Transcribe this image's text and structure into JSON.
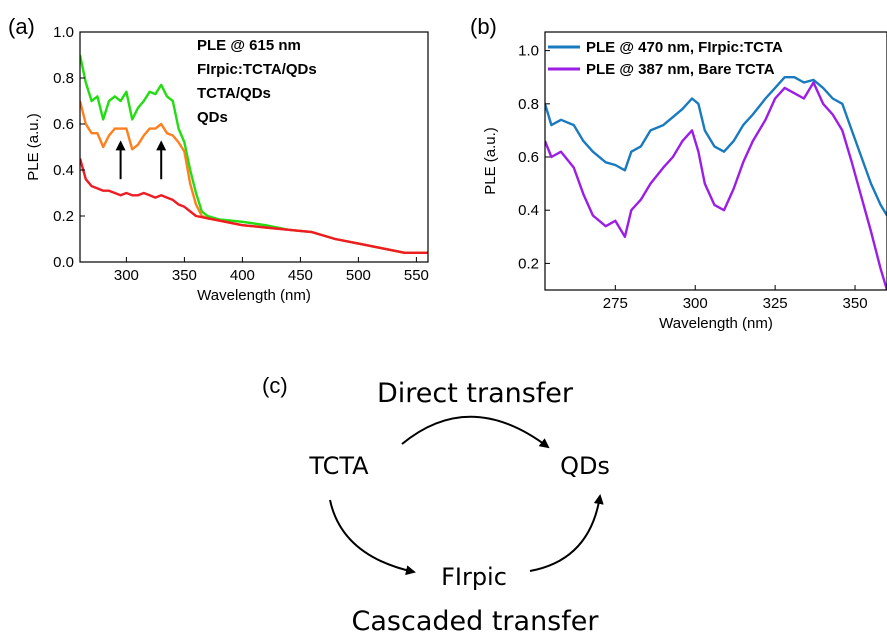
{
  "panel_labels": {
    "a": "(a)",
    "b": "(b)",
    "c": "(c)"
  },
  "chart_data": [
    {
      "type": "line",
      "xlabel": "Wavelength (nm)",
      "ylabel": "PLE (a.u.)",
      "xlim": [
        260,
        560
      ],
      "ylim": [
        0.0,
        1.0
      ],
      "xticks": [
        300,
        350,
        400,
        450,
        500,
        550
      ],
      "yticks": [
        0.0,
        0.2,
        0.4,
        0.6,
        0.8,
        1.0
      ],
      "ytick_labels": [
        "0.0",
        "0.2",
        "0.4",
        "0.6",
        "0.8",
        "1.0"
      ],
      "grid": false,
      "legend_title": "PLE @ 615 nm",
      "legend_position": "top-right",
      "annotations": [
        "up arrow at 295 nm",
        "up arrow at 330 nm"
      ],
      "series": [
        {
          "name": "FIrpic:TCTA/QDs",
          "color": "#22dd11",
          "x": [
            260,
            265,
            270,
            275,
            280,
            285,
            290,
            295,
            300,
            305,
            310,
            315,
            320,
            325,
            330,
            335,
            340,
            345,
            350,
            355,
            360,
            365,
            370,
            380,
            390,
            400,
            420,
            440,
            460,
            480,
            500,
            520,
            540,
            560
          ],
          "y": [
            0.9,
            0.78,
            0.7,
            0.72,
            0.62,
            0.7,
            0.72,
            0.7,
            0.74,
            0.62,
            0.67,
            0.7,
            0.74,
            0.73,
            0.77,
            0.72,
            0.7,
            0.58,
            0.52,
            0.4,
            0.3,
            0.22,
            0.2,
            0.185,
            0.18,
            0.175,
            0.16,
            0.14,
            0.13,
            0.1,
            0.08,
            0.06,
            0.04,
            0.04
          ]
        },
        {
          "name": "TCTA/QDs",
          "color": "#ff7f1e",
          "x": [
            260,
            265,
            270,
            275,
            280,
            285,
            290,
            295,
            300,
            305,
            310,
            315,
            320,
            325,
            330,
            335,
            340,
            345,
            350,
            355,
            360,
            365,
            370,
            380,
            390,
            400,
            420,
            440,
            460,
            480,
            500,
            520,
            540,
            560
          ],
          "y": [
            0.7,
            0.6,
            0.56,
            0.56,
            0.5,
            0.55,
            0.58,
            0.58,
            0.58,
            0.49,
            0.51,
            0.55,
            0.58,
            0.58,
            0.6,
            0.56,
            0.55,
            0.52,
            0.48,
            0.34,
            0.25,
            0.2,
            0.19,
            0.18,
            0.17,
            0.16,
            0.15,
            0.14,
            0.13,
            0.1,
            0.08,
            0.06,
            0.04,
            0.04
          ]
        },
        {
          "name": "QDs",
          "color": "#ee1c24",
          "x": [
            260,
            265,
            270,
            275,
            280,
            285,
            290,
            295,
            300,
            305,
            310,
            315,
            320,
            325,
            330,
            335,
            340,
            345,
            350,
            360,
            370,
            380,
            400,
            420,
            440,
            460,
            480,
            500,
            520,
            540,
            560
          ],
          "y": [
            0.45,
            0.36,
            0.33,
            0.32,
            0.31,
            0.31,
            0.3,
            0.29,
            0.3,
            0.29,
            0.29,
            0.3,
            0.29,
            0.28,
            0.29,
            0.28,
            0.27,
            0.25,
            0.24,
            0.2,
            0.19,
            0.18,
            0.16,
            0.15,
            0.14,
            0.13,
            0.1,
            0.08,
            0.06,
            0.04,
            0.04
          ]
        }
      ]
    },
    {
      "type": "line",
      "xlabel": "Wavelength (nm)",
      "ylabel": "PLE (a.u.)",
      "xlim": [
        253,
        360
      ],
      "ylim": [
        0.1,
        1.07
      ],
      "xticks": [
        275,
        300,
        325,
        350
      ],
      "yticks": [
        0.2,
        0.4,
        0.6,
        0.8,
        1.0
      ],
      "ytick_labels": [
        "0.2",
        "0.4",
        "0.6",
        "0.8",
        "1.0"
      ],
      "grid": false,
      "legend_position": "top-left",
      "series": [
        {
          "name": "PLE @ 470 nm, FIrpic:TCTA",
          "color": "#1a7abf",
          "x": [
            253,
            255,
            258,
            262,
            265,
            268,
            272,
            275,
            278,
            280,
            283,
            286,
            290,
            293,
            296,
            299,
            301,
            303,
            306,
            309,
            312,
            315,
            318,
            322,
            325,
            328,
            331,
            334,
            337,
            340,
            343,
            346,
            349,
            352,
            355,
            358,
            360
          ],
          "y": [
            0.8,
            0.72,
            0.74,
            0.72,
            0.66,
            0.62,
            0.58,
            0.57,
            0.55,
            0.62,
            0.64,
            0.7,
            0.72,
            0.75,
            0.78,
            0.82,
            0.8,
            0.7,
            0.64,
            0.62,
            0.66,
            0.72,
            0.76,
            0.82,
            0.86,
            0.9,
            0.9,
            0.88,
            0.89,
            0.86,
            0.82,
            0.8,
            0.7,
            0.6,
            0.5,
            0.42,
            0.38
          ]
        },
        {
          "name": "PLE @ 387 nm, Bare TCTA",
          "color": "#9b1ee6",
          "x": [
            253,
            255,
            258,
            262,
            265,
            268,
            272,
            275,
            278,
            280,
            283,
            286,
            290,
            293,
            296,
            299,
            301,
            303,
            306,
            309,
            312,
            315,
            318,
            322,
            325,
            328,
            331,
            334,
            337,
            340,
            343,
            346,
            349,
            352,
            355,
            358,
            360
          ],
          "y": [
            0.66,
            0.6,
            0.62,
            0.56,
            0.46,
            0.38,
            0.34,
            0.36,
            0.3,
            0.4,
            0.44,
            0.5,
            0.56,
            0.6,
            0.66,
            0.7,
            0.62,
            0.5,
            0.42,
            0.4,
            0.48,
            0.58,
            0.66,
            0.74,
            0.82,
            0.86,
            0.84,
            0.82,
            0.88,
            0.8,
            0.76,
            0.7,
            0.58,
            0.45,
            0.32,
            0.18,
            0.1
          ]
        }
      ]
    }
  ],
  "diagram": {
    "direct_label": "Direct transfer",
    "cascaded_label": "Cascaded transfer",
    "nodes": {
      "tcta": "TCTA",
      "qds": "QDs",
      "firpic": "FIrpic"
    }
  }
}
